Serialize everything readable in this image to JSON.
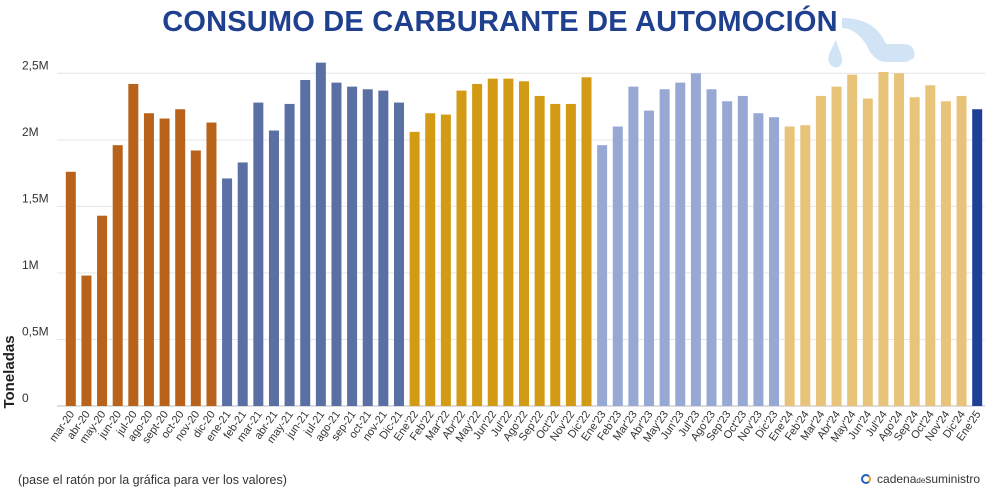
{
  "chart_data": {
    "type": "bar",
    "title": "CONSUMO DE CARBURANTE DE AUTOMOCIÓN",
    "ylabel": "Toneladas",
    "xlabel": "",
    "ylim": [
      0,
      2600000
    ],
    "yticks": [
      {
        "value": 0,
        "label": "0"
      },
      {
        "value": 500000,
        "label": "0,5M"
      },
      {
        "value": 1000000,
        "label": "1M"
      },
      {
        "value": 1500000,
        "label": "1,5M"
      },
      {
        "value": 2000000,
        "label": "2M"
      },
      {
        "value": 2500000,
        "label": "2,5M"
      }
    ],
    "grid": true,
    "year_colors": {
      "2020": "#b8621b",
      "2021": "#5a6fa3",
      "2022": "#d39a14",
      "2023": "#98a8d4",
      "2024": "#e8c37a",
      "2025": "#1f3f96"
    },
    "categories": [
      "mar-20",
      "abr-20",
      "may-20",
      "jun-20",
      "jul-20",
      "ago-20",
      "sept-20",
      "oct-20",
      "nov-20",
      "dic-20",
      "ene-21",
      "feb-21",
      "mar-21",
      "abr-21",
      "may-21",
      "jun-21",
      "jul-21",
      "ago-21",
      "sep-21",
      "oct-21",
      "nov-21",
      "Dic-21",
      "Ene'22",
      "Feb'22",
      "Mar'22",
      "Abr'22",
      "May'22",
      "Jun'22",
      "Jul'22",
      "Ago'22",
      "Sep'22",
      "Oct'22",
      "Nov'22",
      "Dic'22",
      "Ene'23",
      "Feb'23",
      "Mar'23",
      "Abr'23",
      "May'23",
      "Jun'23",
      "Jul'23",
      "Ago'23",
      "Sep'23",
      "Oct'23",
      "Nov'23",
      "Dic'23",
      "Ene'24",
      "Feb'24",
      "Mar'24",
      "Abr'24",
      "May'24",
      "Jun'24",
      "Jul'24",
      "Ago'24",
      "Sep'24",
      "Oct'24",
      "Nov'24",
      "Dic'24",
      "Ene'25"
    ],
    "years": [
      "2020",
      "2020",
      "2020",
      "2020",
      "2020",
      "2020",
      "2020",
      "2020",
      "2020",
      "2020",
      "2021",
      "2021",
      "2021",
      "2021",
      "2021",
      "2021",
      "2021",
      "2021",
      "2021",
      "2021",
      "2021",
      "2021",
      "2022",
      "2022",
      "2022",
      "2022",
      "2022",
      "2022",
      "2022",
      "2022",
      "2022",
      "2022",
      "2022",
      "2022",
      "2023",
      "2023",
      "2023",
      "2023",
      "2023",
      "2023",
      "2023",
      "2023",
      "2023",
      "2023",
      "2023",
      "2023",
      "2024",
      "2024",
      "2024",
      "2024",
      "2024",
      "2024",
      "2024",
      "2024",
      "2024",
      "2024",
      "2024",
      "2024",
      "2025"
    ],
    "values": [
      1760000,
      980000,
      1430000,
      1960000,
      2420000,
      2200000,
      2160000,
      2230000,
      1920000,
      2130000,
      1710000,
      1830000,
      2280000,
      2070000,
      2270000,
      2450000,
      2580000,
      2430000,
      2400000,
      2380000,
      2370000,
      2280000,
      2060000,
      2200000,
      2190000,
      2370000,
      2420000,
      2460000,
      2460000,
      2440000,
      2330000,
      2270000,
      2270000,
      2470000,
      1960000,
      2100000,
      2400000,
      2220000,
      2380000,
      2430000,
      2500000,
      2380000,
      2290000,
      2330000,
      2200000,
      2170000,
      2100000,
      2110000,
      2330000,
      2400000,
      2490000,
      2310000,
      2510000,
      2500000,
      2320000,
      2410000,
      2290000,
      2330000,
      2230000
    ]
  },
  "footnote": "(pase el ratón por la gráfica para ver los valores)",
  "brand": {
    "part1": "cadena",
    "part2": "de",
    "part3": "suministro"
  }
}
